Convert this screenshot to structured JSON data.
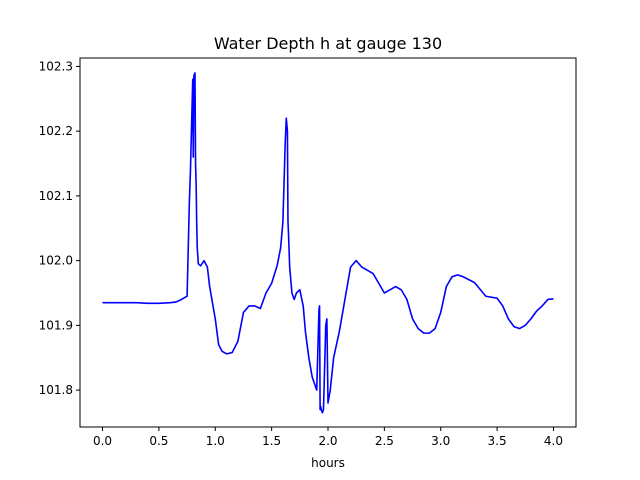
{
  "chart_data": {
    "type": "line",
    "title": "Water Depth h at gauge 130",
    "xlabel": "hours",
    "ylabel": "",
    "xlim": [
      -0.2,
      4.2
    ],
    "ylim": [
      101.743,
      102.313
    ],
    "xticks": [
      0.0,
      0.5,
      1.0,
      1.5,
      2.0,
      2.5,
      3.0,
      3.5,
      4.0
    ],
    "xtick_labels": [
      "0.0",
      "0.5",
      "1.0",
      "1.5",
      "2.0",
      "2.5",
      "3.0",
      "3.5",
      "4.0"
    ],
    "yticks": [
      101.8,
      101.9,
      102.0,
      102.1,
      102.2,
      102.3
    ],
    "ytick_labels": [
      "101.8",
      "101.9",
      "102.0",
      "102.1",
      "102.2",
      "102.3"
    ],
    "grid": false,
    "series": [
      {
        "color": "#0000ff",
        "x": [
          0.0,
          0.1,
          0.2,
          0.3,
          0.4,
          0.5,
          0.6,
          0.65,
          0.7,
          0.75,
          0.77,
          0.78,
          0.8,
          0.805,
          0.81,
          0.82,
          0.825,
          0.83,
          0.835,
          0.84,
          0.85,
          0.87,
          0.9,
          0.93,
          0.95,
          0.97,
          1.0,
          1.03,
          1.06,
          1.1,
          1.15,
          1.2,
          1.25,
          1.3,
          1.35,
          1.4,
          1.45,
          1.5,
          1.55,
          1.58,
          1.6,
          1.62,
          1.625,
          1.63,
          1.64,
          1.645,
          1.65,
          1.66,
          1.68,
          1.7,
          1.72,
          1.75,
          1.78,
          1.8,
          1.83,
          1.86,
          1.9,
          1.92,
          1.925,
          1.93,
          1.935,
          1.94,
          1.95,
          1.96,
          1.98,
          1.99,
          2.0,
          2.01,
          2.02,
          2.05,
          2.1,
          2.15,
          2.2,
          2.25,
          2.3,
          2.35,
          2.4,
          2.45,
          2.5,
          2.55,
          2.6,
          2.65,
          2.7,
          2.75,
          2.8,
          2.85,
          2.9,
          2.95,
          3.0,
          3.05,
          3.1,
          3.15,
          3.2,
          3.3,
          3.4,
          3.5,
          3.55,
          3.6,
          3.65,
          3.7,
          3.75,
          3.8,
          3.85,
          3.9,
          3.95,
          4.0
        ],
        "y": [
          101.935,
          101.935,
          101.935,
          101.935,
          101.934,
          101.934,
          101.935,
          101.936,
          101.94,
          101.945,
          102.09,
          102.14,
          102.28,
          102.16,
          102.285,
          102.29,
          102.15,
          102.12,
          102.06,
          102.02,
          101.995,
          101.992,
          102.0,
          101.99,
          101.96,
          101.94,
          101.91,
          101.87,
          101.86,
          101.856,
          101.858,
          101.875,
          101.92,
          101.93,
          101.93,
          101.926,
          101.95,
          101.965,
          101.993,
          102.02,
          102.06,
          102.18,
          102.2,
          102.22,
          102.2,
          102.06,
          102.04,
          101.99,
          101.95,
          101.94,
          101.95,
          101.955,
          101.93,
          101.89,
          101.85,
          101.82,
          101.8,
          101.925,
          101.93,
          101.77,
          101.775,
          101.77,
          101.765,
          101.77,
          101.9,
          101.91,
          101.78,
          101.79,
          101.8,
          101.85,
          101.89,
          101.94,
          101.99,
          102.0,
          101.99,
          101.985,
          101.98,
          101.965,
          101.95,
          101.955,
          101.96,
          101.955,
          101.94,
          101.91,
          101.895,
          101.888,
          101.888,
          101.895,
          101.92,
          101.96,
          101.975,
          101.978,
          101.975,
          101.966,
          101.945,
          101.942,
          101.93,
          101.91,
          101.898,
          101.895,
          101.9,
          101.91,
          101.922,
          101.93,
          101.94,
          101.941
        ]
      }
    ]
  }
}
